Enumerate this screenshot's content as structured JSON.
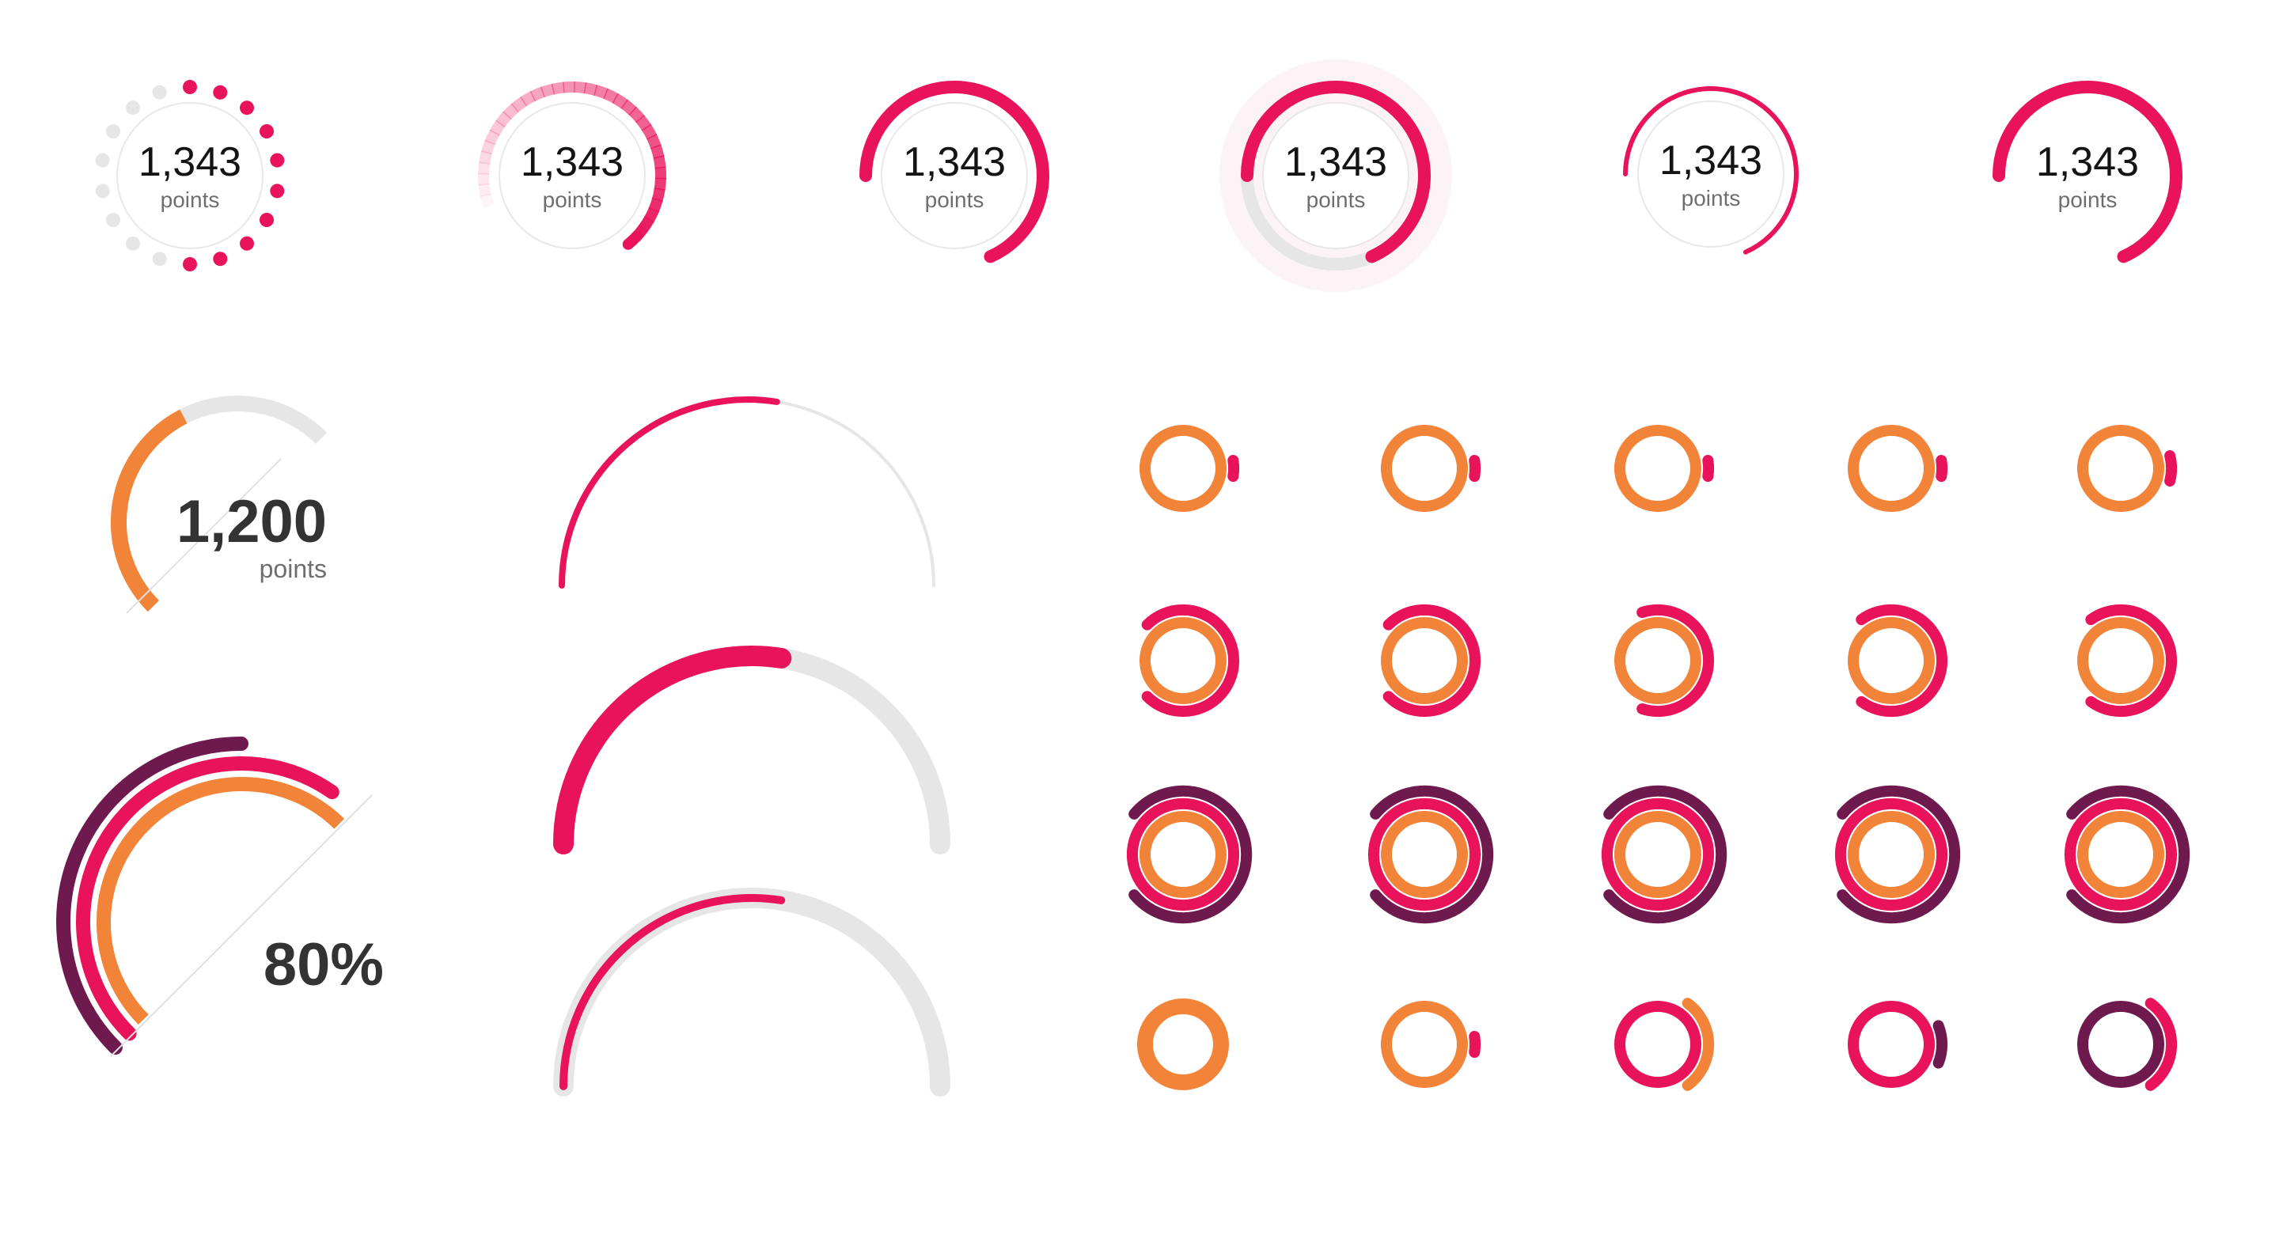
{
  "colors": {
    "pink": "#E8135A",
    "orange": "#F2843A",
    "purple": "#6E1A4E",
    "track": "#E6E6E6",
    "ring_border": "#E8E8E8",
    "text_dark": "#141414",
    "text_muted": "#6E6E6E",
    "text_big": "#333333"
  },
  "points_gauges": [
    {
      "style": "dots",
      "value": "1,343",
      "unit": "points",
      "progress": 0.55
    },
    {
      "style": "gradient-arc",
      "value": "1,343",
      "unit": "points",
      "progress": 0.7
    },
    {
      "style": "thick-arc",
      "value": "1,343",
      "unit": "points",
      "progress": 0.62
    },
    {
      "style": "arc-with-track-halo",
      "value": "1,343",
      "unit": "points",
      "progress": 0.62
    },
    {
      "style": "thin-arc",
      "value": "1,343",
      "unit": "points",
      "progress": 0.62
    },
    {
      "style": "thick-arc-no-ring",
      "value": "1,343",
      "unit": "points",
      "progress": 0.62
    }
  ],
  "quarter_gauge": {
    "value": "1,200",
    "unit": "points",
    "progress": 0.6
  },
  "multi_ring_gauge": {
    "value": "80%"
  },
  "semi_gauges": [
    {
      "style": "thin",
      "progress": 0.55
    },
    {
      "style": "thick",
      "progress": 0.55
    },
    {
      "style": "thin-on-thick-track",
      "progress": 0.55
    }
  ],
  "ring_grid": [
    {
      "rings": [
        {
          "color": "orange",
          "progress": 1
        },
        {
          "color": "pink",
          "progress": 0.05
        }
      ]
    },
    {
      "rings": [
        {
          "color": "orange",
          "progress": 1
        },
        {
          "color": "pink",
          "progress": 0.05
        }
      ]
    },
    {
      "rings": [
        {
          "color": "orange",
          "progress": 1
        },
        {
          "color": "pink",
          "progress": 0.05
        }
      ]
    },
    {
      "rings": [
        {
          "color": "orange",
          "progress": 1
        },
        {
          "color": "pink",
          "progress": 0.05
        }
      ]
    },
    {
      "rings": [
        {
          "color": "orange",
          "progress": 1
        },
        {
          "color": "pink",
          "progress": 0.08
        }
      ]
    },
    {
      "rings": [
        {
          "color": "orange",
          "progress": 1
        },
        {
          "color": "pink",
          "progress": 0.75
        }
      ]
    },
    {
      "rings": [
        {
          "color": "orange",
          "progress": 1
        },
        {
          "color": "pink",
          "progress": 0.75
        }
      ]
    },
    {
      "rings": [
        {
          "color": "orange",
          "progress": 1
        },
        {
          "color": "pink",
          "progress": 0.6
        }
      ]
    },
    {
      "rings": [
        {
          "color": "orange",
          "progress": 1
        },
        {
          "color": "pink",
          "progress": 0.7
        }
      ]
    },
    {
      "rings": [
        {
          "color": "orange",
          "progress": 1
        },
        {
          "color": "pink",
          "progress": 0.7
        }
      ]
    },
    {
      "rings": [
        {
          "color": "orange",
          "progress": 1
        },
        {
          "color": "pink",
          "progress": 1
        },
        {
          "color": "purple",
          "progress": 0.78
        }
      ]
    },
    {
      "rings": [
        {
          "color": "orange",
          "progress": 1
        },
        {
          "color": "pink",
          "progress": 1
        },
        {
          "color": "purple",
          "progress": 0.78
        }
      ]
    },
    {
      "rings": [
        {
          "color": "orange",
          "progress": 1
        },
        {
          "color": "pink",
          "progress": 1
        },
        {
          "color": "purple",
          "progress": 0.78
        }
      ]
    },
    {
      "rings": [
        {
          "color": "orange",
          "progress": 1
        },
        {
          "color": "pink",
          "progress": 1
        },
        {
          "color": "purple",
          "progress": 0.78
        }
      ]
    },
    {
      "rings": [
        {
          "color": "orange",
          "progress": 1
        },
        {
          "color": "pink",
          "progress": 1
        },
        {
          "color": "purple",
          "progress": 0.78
        }
      ]
    },
    {
      "rings": [
        {
          "color": "orange",
          "progress": 1
        }
      ]
    },
    {
      "rings": [
        {
          "color": "orange",
          "progress": 1
        },
        {
          "color": "pink",
          "progress": 0.05
        }
      ]
    },
    {
      "rings": [
        {
          "color": "pink",
          "progress": 1
        },
        {
          "color": "orange",
          "progress": 0.3
        }
      ]
    },
    {
      "rings": [
        {
          "color": "pink",
          "progress": 1
        },
        {
          "color": "purple",
          "progress": 0.12
        }
      ]
    },
    {
      "rings": [
        {
          "color": "purple",
          "progress": 1
        },
        {
          "color": "pink",
          "progress": 0.3
        }
      ]
    }
  ]
}
